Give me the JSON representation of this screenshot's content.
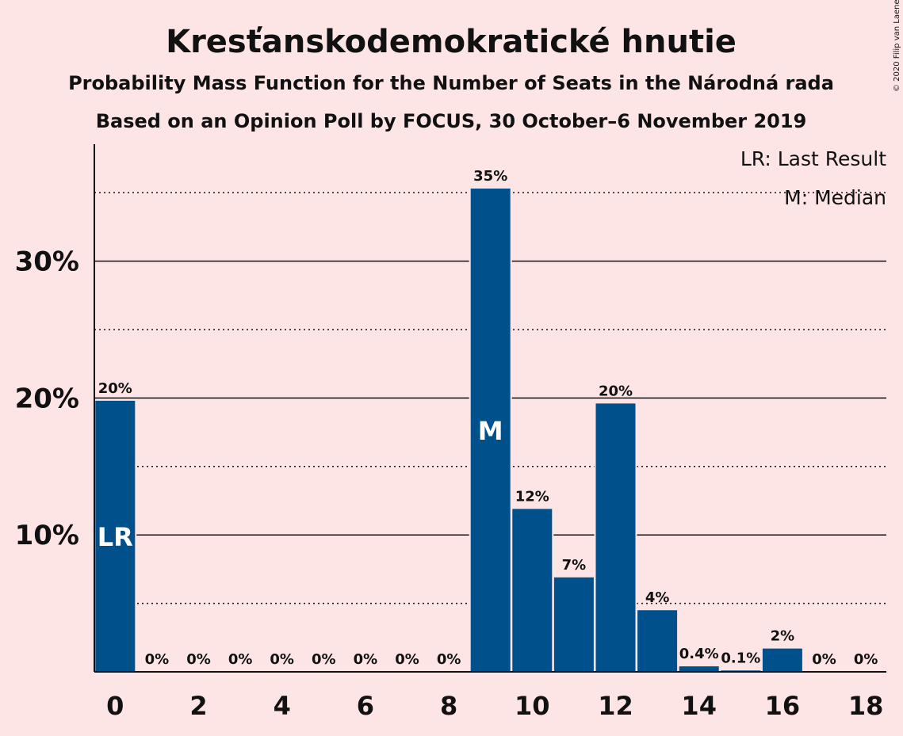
{
  "title": "Kresťanskodemokratické hnutie",
  "subtitle1": "Probability Mass Function for the Number of Seats in the Národná rada",
  "subtitle2": "Based on an Opinion Poll by FOCUS, 30 October–6 November 2019",
  "copyright": "© 2020 Filip van Laenen",
  "legend": {
    "lr": "LR: Last Result",
    "median": "M: Median"
  },
  "colors": {
    "bar": "#00508C",
    "background": "#FDE5E6"
  },
  "chart_data": {
    "type": "bar",
    "x": [
      0,
      1,
      2,
      3,
      4,
      5,
      6,
      7,
      8,
      9,
      10,
      11,
      12,
      13,
      14,
      15,
      16,
      17,
      18
    ],
    "values": [
      19.8,
      0,
      0,
      0,
      0,
      0,
      0,
      0,
      0,
      35.3,
      11.9,
      6.9,
      19.6,
      4.5,
      0.4,
      0.1,
      1.7,
      0,
      0
    ],
    "data_labels": [
      "20%",
      "0%",
      "0%",
      "0%",
      "0%",
      "0%",
      "0%",
      "0%",
      "0%",
      "35%",
      "12%",
      "7%",
      "20%",
      "4%",
      "0.4%",
      "0.1%",
      "2%",
      "0%",
      "0%"
    ],
    "bar_markers": [
      {
        "x": 0,
        "text": "LR"
      },
      {
        "x": 9,
        "text": "M"
      }
    ],
    "x_ticks": [
      "0",
      "2",
      "4",
      "6",
      "8",
      "10",
      "12",
      "14",
      "16",
      "18"
    ],
    "y_ticks": [
      {
        "value": 10,
        "label": "10%"
      },
      {
        "value": 20,
        "label": "20%"
      },
      {
        "value": 30,
        "label": "30%"
      }
    ],
    "ylim": [
      0,
      38.5
    ],
    "grid": {
      "major": [
        10,
        20,
        30
      ],
      "minor_dotted": [
        5,
        15,
        25,
        35
      ]
    },
    "legend_position": "top-right"
  }
}
